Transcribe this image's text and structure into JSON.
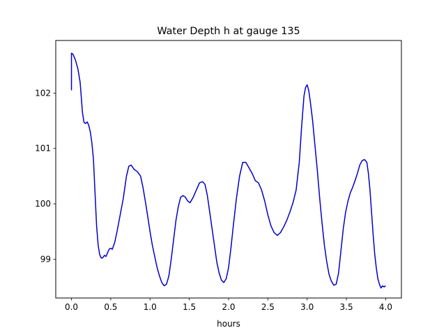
{
  "chart_data": {
    "type": "line",
    "title": "Water Depth h at gauge 135",
    "xlabel": "hours",
    "ylabel": "",
    "xlim": [
      -0.2,
      4.2
    ],
    "ylim": [
      98.3,
      102.95
    ],
    "xticks": [
      0.0,
      0.5,
      1.0,
      1.5,
      2.0,
      2.5,
      3.0,
      3.5,
      4.0
    ],
    "xtick_labels": [
      "0.0",
      "0.5",
      "1.0",
      "1.5",
      "2.0",
      "2.5",
      "3.0",
      "3.5",
      "4.0"
    ],
    "yticks": [
      99,
      100,
      101,
      102
    ],
    "ytick_labels": [
      "99",
      "100",
      "101",
      "102"
    ],
    "grid": false,
    "line_color": "#0000cc",
    "series": [
      {
        "x": [
          0.0,
          0.0,
          0.02,
          0.05,
          0.08,
          0.11,
          0.14,
          0.16,
          0.18,
          0.2,
          0.22,
          0.24,
          0.26,
          0.28,
          0.3,
          0.32,
          0.34,
          0.36,
          0.38,
          0.4,
          0.42,
          0.44,
          0.46,
          0.48,
          0.5,
          0.52,
          0.55,
          0.58,
          0.62,
          0.66,
          0.7,
          0.73,
          0.76,
          0.8,
          0.84,
          0.88,
          0.91,
          0.94,
          0.97,
          1.0,
          1.03,
          1.06,
          1.09,
          1.12,
          1.15,
          1.18,
          1.21,
          1.24,
          1.27,
          1.3,
          1.33,
          1.36,
          1.39,
          1.42,
          1.45,
          1.48,
          1.51,
          1.55,
          1.59,
          1.63,
          1.67,
          1.7,
          1.73,
          1.76,
          1.79,
          1.82,
          1.85,
          1.88,
          1.91,
          1.94,
          1.97,
          2.0,
          2.03,
          2.06,
          2.1,
          2.14,
          2.18,
          2.22,
          2.26,
          2.3,
          2.34,
          2.38,
          2.42,
          2.46,
          2.5,
          2.54,
          2.58,
          2.62,
          2.66,
          2.7,
          2.74,
          2.78,
          2.82,
          2.86,
          2.9,
          2.93,
          2.96,
          2.98,
          3.0,
          3.02,
          3.04,
          3.07,
          3.1,
          3.13,
          3.16,
          3.19,
          3.22,
          3.25,
          3.28,
          3.31,
          3.34,
          3.37,
          3.4,
          3.43,
          3.46,
          3.49,
          3.52,
          3.55,
          3.58,
          3.61,
          3.64,
          3.67,
          3.7,
          3.73,
          3.76,
          3.78,
          3.8,
          3.82,
          3.84,
          3.86,
          3.88,
          3.9,
          3.92,
          3.94,
          3.96,
          3.98,
          4.0
        ],
        "values": [
          102.05,
          102.72,
          102.7,
          102.6,
          102.45,
          102.2,
          101.65,
          101.47,
          101.45,
          101.48,
          101.42,
          101.3,
          101.1,
          100.8,
          100.2,
          99.6,
          99.25,
          99.08,
          99.02,
          99.03,
          99.07,
          99.05,
          99.12,
          99.18,
          99.2,
          99.18,
          99.3,
          99.5,
          99.8,
          100.1,
          100.5,
          100.68,
          100.7,
          100.62,
          100.58,
          100.5,
          100.3,
          100.05,
          99.78,
          99.5,
          99.25,
          99.05,
          98.85,
          98.7,
          98.58,
          98.52,
          98.55,
          98.7,
          99.0,
          99.35,
          99.7,
          99.95,
          100.12,
          100.15,
          100.12,
          100.05,
          100.02,
          100.12,
          100.25,
          100.38,
          100.4,
          100.35,
          100.15,
          99.85,
          99.55,
          99.25,
          98.95,
          98.75,
          98.62,
          98.58,
          98.65,
          98.85,
          99.2,
          99.6,
          100.1,
          100.5,
          100.75,
          100.75,
          100.65,
          100.55,
          100.42,
          100.38,
          100.25,
          100.05,
          99.8,
          99.6,
          99.48,
          99.43,
          99.48,
          99.58,
          99.7,
          99.85,
          100.02,
          100.25,
          100.75,
          101.4,
          101.95,
          102.1,
          102.15,
          102.05,
          101.85,
          101.5,
          101.05,
          100.6,
          100.1,
          99.65,
          99.25,
          98.95,
          98.72,
          98.6,
          98.53,
          98.55,
          98.75,
          99.15,
          99.55,
          99.85,
          100.05,
          100.2,
          100.3,
          100.42,
          100.55,
          100.7,
          100.78,
          100.8,
          100.75,
          100.55,
          100.25,
          99.85,
          99.45,
          99.1,
          98.85,
          98.65,
          98.55,
          98.48,
          98.52,
          98.5,
          98.52
        ]
      }
    ]
  }
}
